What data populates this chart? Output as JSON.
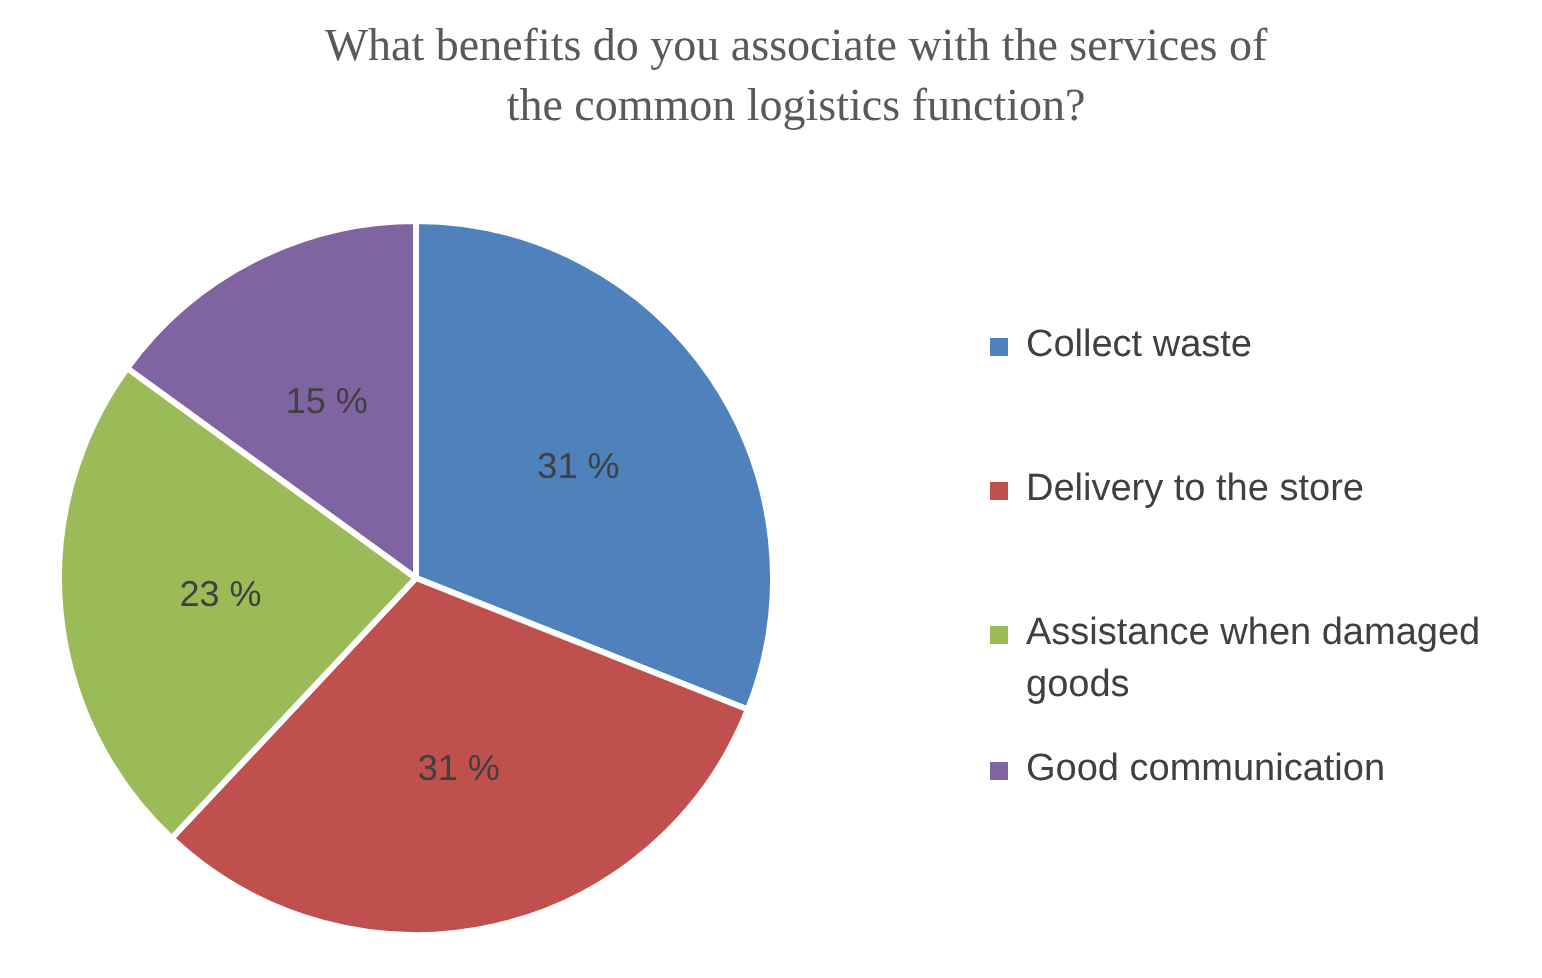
{
  "chart_data": {
    "type": "pie",
    "title": "What benefits do you associate with the services of the common logistics function?",
    "categories": [
      "Collect waste",
      "Delivery to the store",
      "Assistance when damaged goods",
      "Good communication"
    ],
    "values": [
      31,
      31,
      23,
      15
    ],
    "colors": [
      "#4f81bd",
      "#c0504d",
      "#9bbb59",
      "#8064a2"
    ],
    "value_labels": [
      "31 %",
      "31 %",
      "23 %",
      "15 %"
    ],
    "legend": "right"
  }
}
